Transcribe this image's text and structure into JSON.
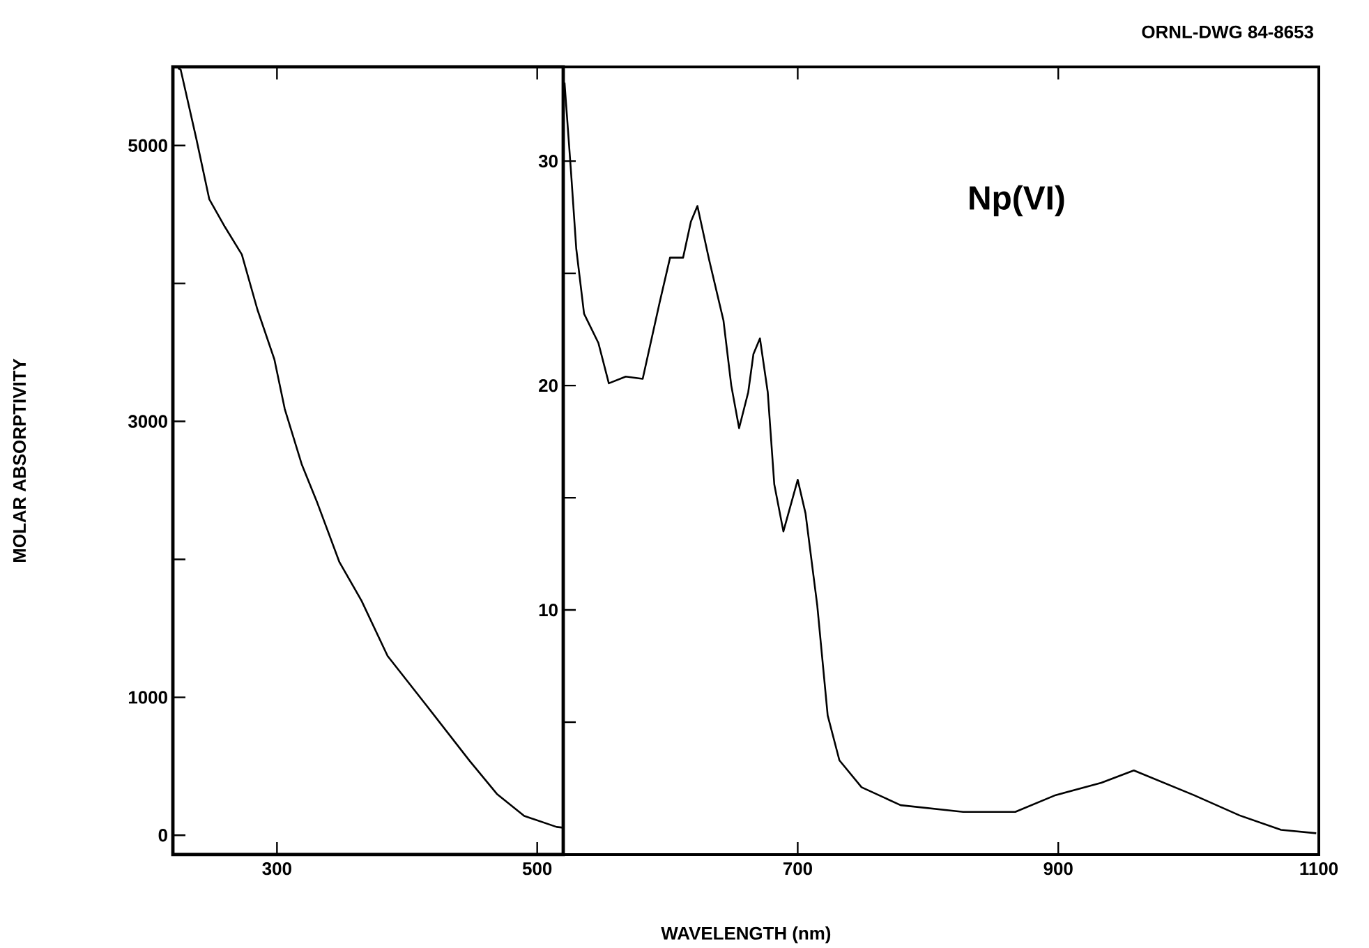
{
  "chart_data": [
    {
      "type": "line",
      "ylabel": "MOLAR ABSORPTIVITY",
      "color": "#000000",
      "xlim": [
        220,
        520
      ],
      "ylim": [
        -140,
        5570
      ],
      "xticks": [
        300,
        500
      ],
      "yticks": [
        0,
        1000,
        {
          "value": 2000,
          "label": null
        },
        3000,
        {
          "value": 4000,
          "label": null
        },
        5000
      ],
      "x": [
        224,
        226,
        238,
        248,
        260,
        273,
        285,
        298,
        306,
        319,
        331,
        348,
        365,
        385,
        415,
        448,
        469,
        490,
        515,
        520
      ],
      "values": [
        5560,
        5550,
        5050,
        4610,
        4410,
        4210,
        3810,
        3450,
        3090,
        2690,
        2410,
        1980,
        1700,
        1300,
        940,
        540,
        300,
        140,
        60,
        55
      ]
    },
    {
      "type": "line",
      "xlabel": "WAVELENGTH (nm)",
      "color": "#000000",
      "annotations": [
        "Np(VI)",
        "ORNL-DWG 84-8653"
      ],
      "xlim": [
        520,
        1100
      ],
      "ylim": [
        -0.9,
        34.2
      ],
      "xticks": [
        700,
        900,
        1100
      ],
      "yticks": [
        {
          "value": 5,
          "label": null
        },
        10,
        {
          "value": 15,
          "label": null
        },
        20,
        {
          "value": 25,
          "label": null
        },
        30
      ],
      "x": [
        521,
        526,
        530,
        536,
        547,
        555,
        568,
        581,
        594,
        602,
        612,
        618,
        623,
        632,
        643,
        649,
        655,
        662,
        666,
        671,
        677,
        682,
        689,
        700,
        706,
        715,
        723,
        732,
        749,
        779,
        827,
        867,
        898,
        933,
        958,
        1004,
        1039,
        1071,
        1098
      ],
      "values": [
        33.5,
        29.5,
        26.1,
        23.2,
        21.9,
        20.1,
        20.4,
        20.3,
        23.7,
        25.7,
        25.7,
        27.3,
        28.0,
        25.6,
        22.9,
        20.0,
        18.1,
        19.7,
        21.4,
        22.1,
        19.7,
        15.6,
        13.5,
        15.8,
        14.3,
        10.2,
        5.3,
        3.3,
        2.1,
        1.3,
        1.0,
        1.0,
        1.75,
        2.3,
        2.85,
        1.75,
        0.85,
        0.2,
        0.05
      ]
    }
  ]
}
